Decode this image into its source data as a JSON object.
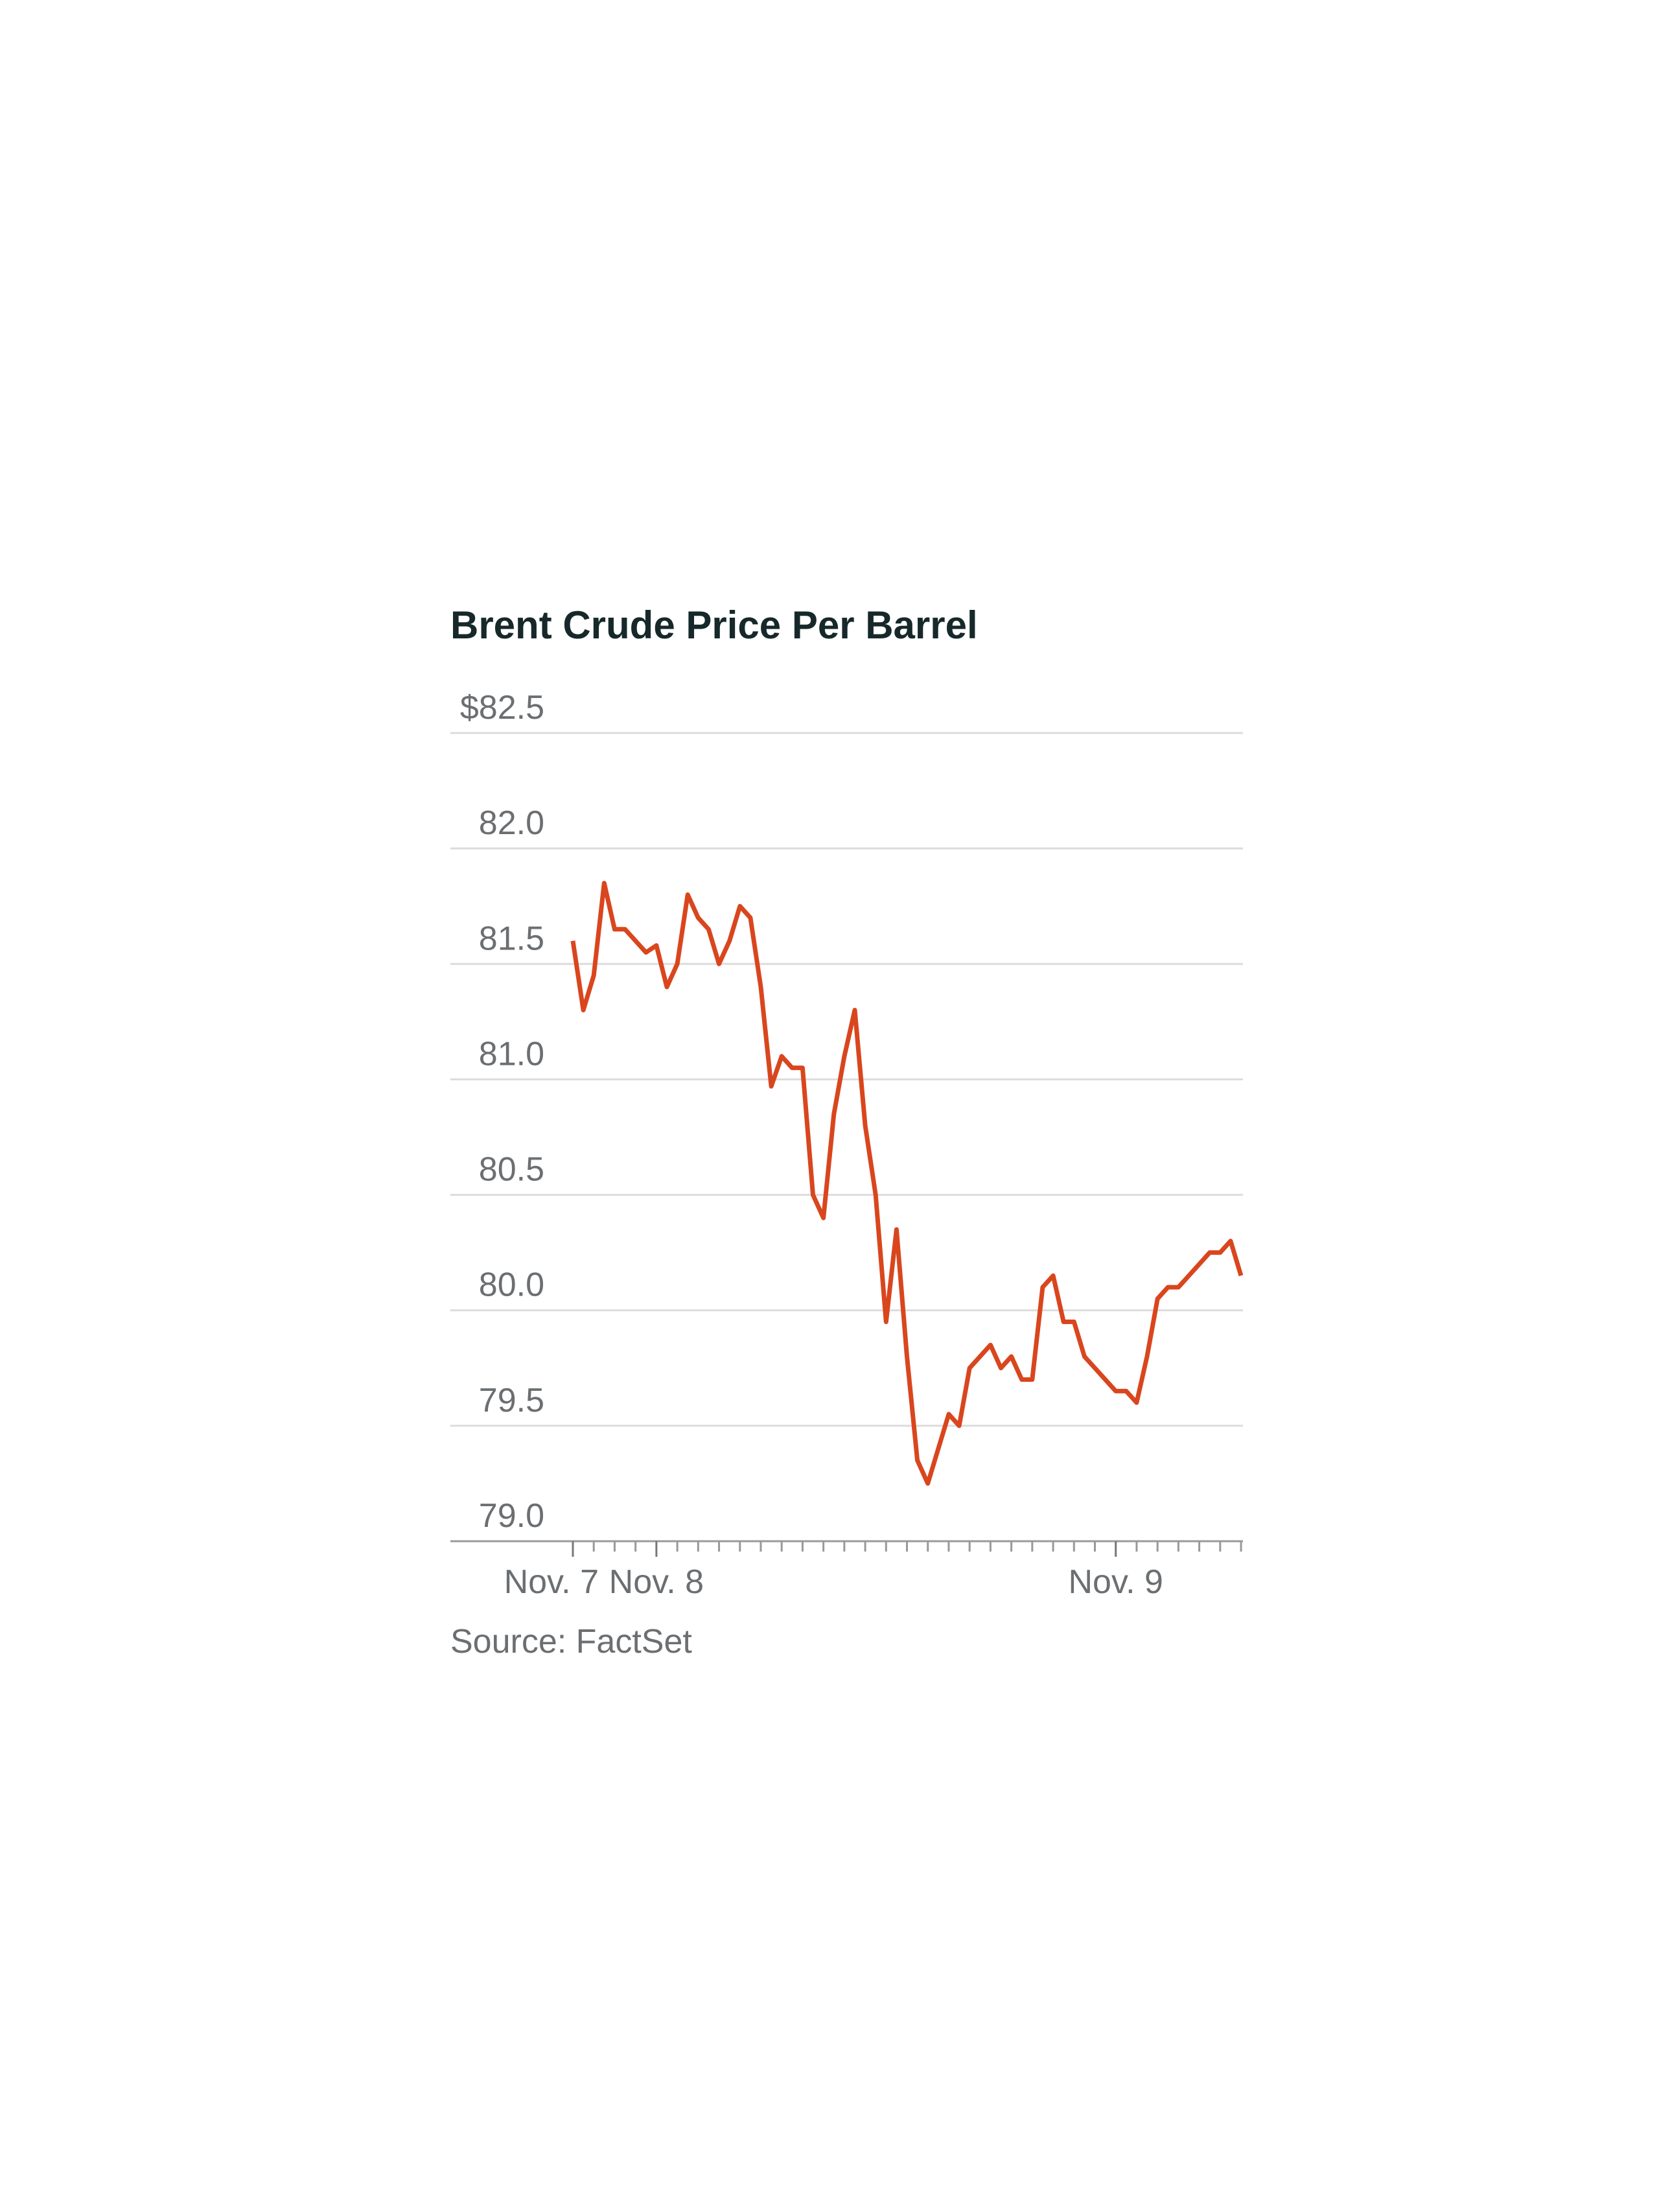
{
  "chart_data": {
    "type": "line",
    "title": "Brent Crude Price Per Barrel",
    "source": "Source: FactSet",
    "categories": [
      "Nov. 7",
      null,
      null,
      null,
      null,
      null,
      null,
      null,
      "Nov. 8",
      null,
      null,
      null,
      null,
      null,
      null,
      null,
      null,
      null,
      null,
      null,
      null,
      null,
      null,
      null,
      null,
      null,
      null,
      null,
      null,
      null,
      null,
      null,
      null,
      null,
      null,
      null,
      null,
      null,
      null,
      null,
      null,
      null,
      null,
      null,
      null,
      null,
      null,
      null,
      null,
      null,
      null,
      null,
      "Nov. 9",
      null,
      null,
      null,
      null,
      null,
      null,
      null,
      null,
      null,
      null,
      null,
      null
    ],
    "series": [
      {
        "name": "Brent crude",
        "color": "#d9461e",
        "values": [
          81.6,
          81.3,
          81.45,
          81.85,
          81.65,
          81.65,
          81.6,
          81.55,
          81.58,
          81.4,
          81.5,
          81.8,
          81.7,
          81.65,
          81.5,
          81.6,
          81.75,
          81.7,
          81.4,
          80.97,
          81.1,
          81.05,
          81.05,
          80.5,
          80.4,
          80.85,
          81.1,
          81.3,
          80.8,
          80.5,
          79.95,
          80.35,
          79.8,
          79.35,
          79.25,
          79.4,
          79.55,
          79.5,
          79.75,
          79.8,
          79.85,
          79.75,
          79.8,
          79.7,
          79.7,
          80.1,
          80.15,
          79.95,
          79.95,
          79.8,
          79.75,
          79.7,
          79.65,
          79.65,
          79.6,
          79.8,
          80.05,
          80.1,
          80.1,
          80.15,
          80.2,
          80.25,
          80.25,
          80.3,
          80.15
        ]
      }
    ],
    "ylim": [
      79,
      82.5
    ],
    "yticks": [
      {
        "value": 79,
        "label": "79.0"
      },
      79.5,
      {
        "value": 80,
        "label": "80.0"
      },
      80.5,
      {
        "value": 81,
        "label": "81.0"
      },
      81.5,
      {
        "value": 82,
        "label": "82.0"
      },
      {
        "value": 82.5,
        "label": "$82.5"
      }
    ],
    "grid": true
  }
}
